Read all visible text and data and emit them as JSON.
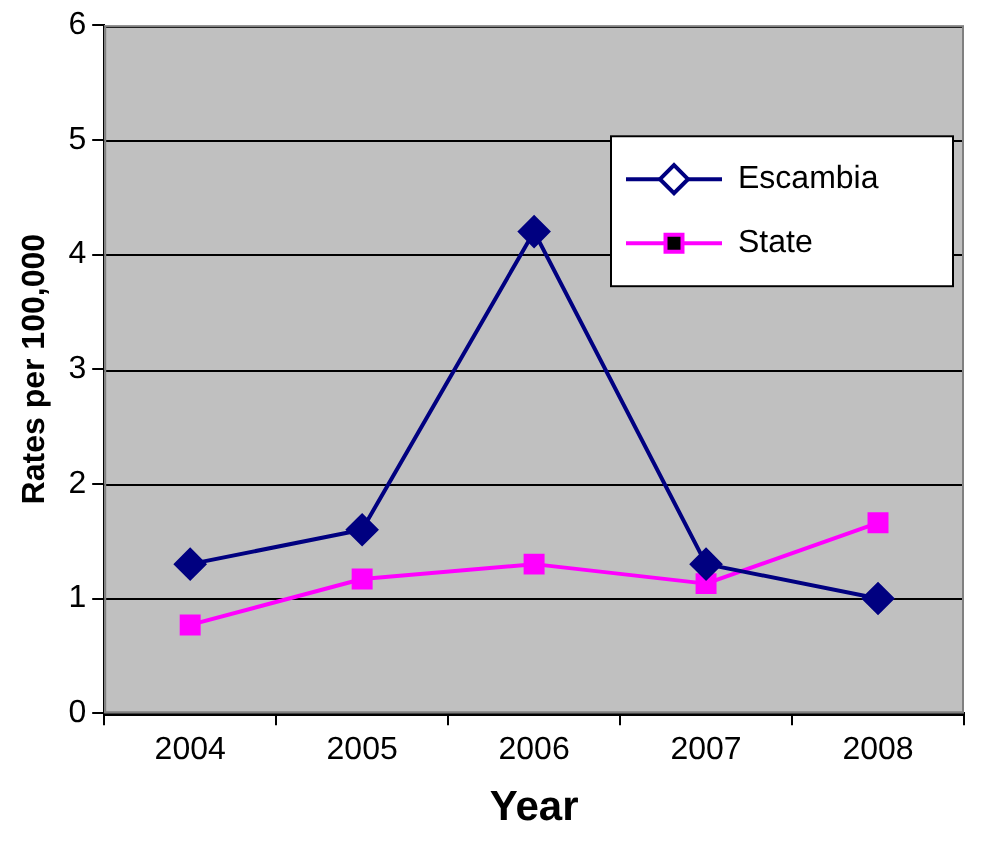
{
  "chart_data": {
    "type": "line",
    "xlabel": "Year",
    "ylabel": "Rates per 100,000",
    "categories": [
      "2004",
      "2005",
      "2006",
      "2007",
      "2008"
    ],
    "series": [
      {
        "name": "Escambia",
        "color": "#000080",
        "marker": "diamond",
        "values": [
          1.3,
          1.6,
          4.2,
          1.3,
          1.0
        ]
      },
      {
        "name": "State",
        "color": "#ff00ff",
        "marker": "square",
        "values": [
          0.77,
          1.17,
          1.3,
          1.13,
          1.66
        ]
      }
    ],
    "ylim": [
      0,
      6
    ],
    "yticks": [
      0,
      1,
      2,
      3,
      4,
      5,
      6
    ],
    "grid": "y",
    "legend": "top right"
  }
}
